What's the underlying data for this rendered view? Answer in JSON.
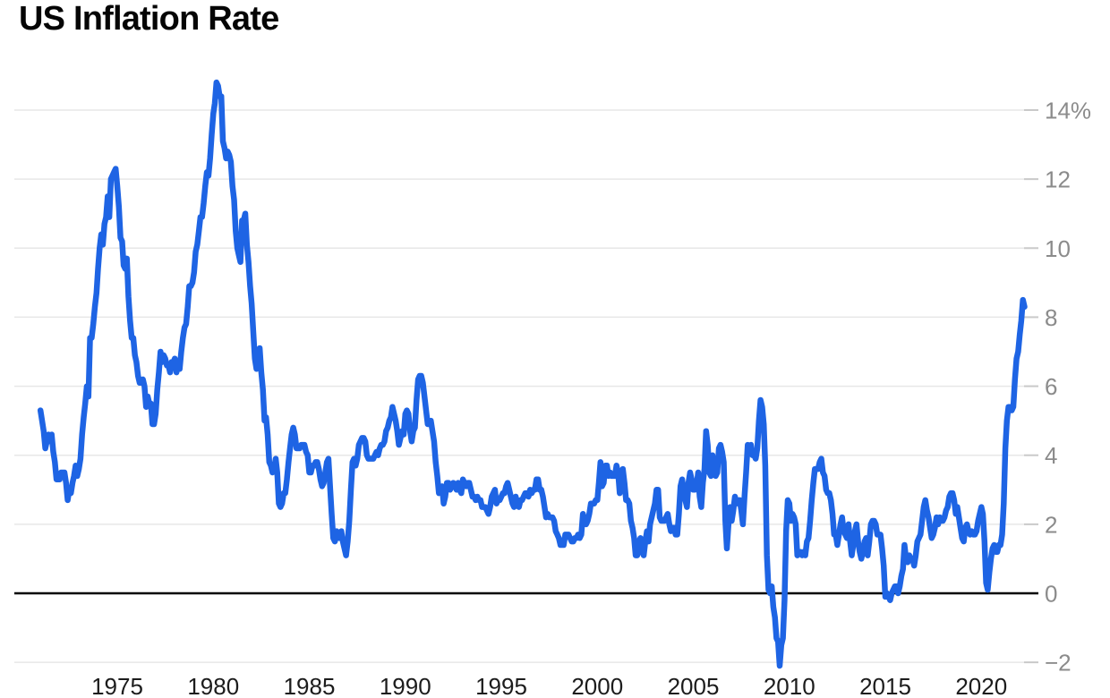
{
  "title": "US Inflation Rate",
  "appearance": {
    "line_color": "#1e64e4",
    "grid_color": "#e7e7e7",
    "tick_color": "#c9c9c9",
    "zero_line_color": "#000000",
    "y_label_color": "#8b8b8b",
    "x_label_color": "#1c1c1c",
    "title_color": "#050505",
    "background": "#ffffff"
  },
  "chart_data": {
    "type": "line",
    "title": "US Inflation Rate",
    "unit": "%",
    "legend": "none",
    "grid": "horizontal-only",
    "x_ticks": [
      1975,
      1980,
      1985,
      1990,
      1995,
      2000,
      2005,
      2010,
      2015,
      2020
    ],
    "y_ticks": {
      "values": [
        14,
        12,
        10,
        8,
        6,
        4,
        2,
        0,
        -2
      ],
      "labels": [
        "14%",
        "12",
        "10",
        "8",
        "6",
        "4",
        "2",
        "0",
        "−2"
      ]
    },
    "xlim_years": [
      1971.0,
      2022.33
    ],
    "ylim": [
      -2.6,
      15.3
    ],
    "series": [
      {
        "name": "US Inflation Rate",
        "frequency": "monthly",
        "start": "1971-01",
        "end": "2022-04",
        "values": [
          5.3,
          5.0,
          4.7,
          4.2,
          4.4,
          4.6,
          4.4,
          4.6,
          4.1,
          3.8,
          3.3,
          3.3,
          3.3,
          3.5,
          3.5,
          3.5,
          3.2,
          2.7,
          3.0,
          2.9,
          3.2,
          3.4,
          3.7,
          3.4,
          3.6,
          3.9,
          4.6,
          5.1,
          5.5,
          6.0,
          5.7,
          7.4,
          7.4,
          7.8,
          8.3,
          8.7,
          9.4,
          10.0,
          10.4,
          10.1,
          10.7,
          10.9,
          11.5,
          10.9,
          12.0,
          12.1,
          12.2,
          12.3,
          11.8,
          11.2,
          10.3,
          10.2,
          9.5,
          9.4,
          9.7,
          8.6,
          7.9,
          7.4,
          7.4,
          6.9,
          6.7,
          6.3,
          6.1,
          6.1,
          6.2,
          6.0,
          5.4,
          5.7,
          5.5,
          5.5,
          4.9,
          4.9,
          5.2,
          5.9,
          6.4,
          7.0,
          6.7,
          6.9,
          6.8,
          6.6,
          6.6,
          6.4,
          6.7,
          6.7,
          6.8,
          6.4,
          6.6,
          6.5,
          7.0,
          7.4,
          7.7,
          7.8,
          8.3,
          8.9,
          8.9,
          9.0,
          9.3,
          9.9,
          10.1,
          10.5,
          10.9,
          10.9,
          11.3,
          11.8,
          12.2,
          12.1,
          12.6,
          13.3,
          13.9,
          14.2,
          14.8,
          14.7,
          14.4,
          14.4,
          13.1,
          12.9,
          12.6,
          12.8,
          12.7,
          12.5,
          11.8,
          11.4,
          10.5,
          10.0,
          9.8,
          9.6,
          10.8,
          10.8,
          11.0,
          10.1,
          9.6,
          8.9,
          8.4,
          7.6,
          6.8,
          6.5,
          6.7,
          7.1,
          6.4,
          5.9,
          5.0,
          5.1,
          4.6,
          3.8,
          3.7,
          3.5,
          3.6,
          3.9,
          3.5,
          2.6,
          2.5,
          2.6,
          2.9,
          2.9,
          3.3,
          3.8,
          4.2,
          4.6,
          4.8,
          4.6,
          4.2,
          4.2,
          4.2,
          4.3,
          4.3,
          4.3,
          4.1,
          4.0,
          3.5,
          3.5,
          3.7,
          3.7,
          3.8,
          3.8,
          3.6,
          3.3,
          3.1,
          3.2,
          3.5,
          3.8,
          3.9,
          3.1,
          2.3,
          1.6,
          1.5,
          1.8,
          1.6,
          1.6,
          1.8,
          1.5,
          1.3,
          1.1,
          1.5,
          2.1,
          3.0,
          3.8,
          3.9,
          3.7,
          3.9,
          4.3,
          4.4,
          4.5,
          4.5,
          4.4,
          4.0,
          3.9,
          3.9,
          3.9,
          3.9,
          4.0,
          4.1,
          4.0,
          4.2,
          4.3,
          4.3,
          4.4,
          4.7,
          4.8,
          5.0,
          5.1,
          5.4,
          5.2,
          5.0,
          4.7,
          4.3,
          4.5,
          4.7,
          4.6,
          5.2,
          5.3,
          5.2,
          4.7,
          4.4,
          4.7,
          4.8,
          5.6,
          6.2,
          6.3,
          6.3,
          6.1,
          5.7,
          5.3,
          4.9,
          4.9,
          5.0,
          4.7,
          4.4,
          3.8,
          3.4,
          2.9,
          3.0,
          3.1,
          2.6,
          2.8,
          3.2,
          3.2,
          3.0,
          3.1,
          3.2,
          3.1,
          3.0,
          3.2,
          3.0,
          2.9,
          3.3,
          3.2,
          3.1,
          3.2,
          3.2,
          3.0,
          2.8,
          2.8,
          2.7,
          2.8,
          2.7,
          2.7,
          2.5,
          2.5,
          2.5,
          2.4,
          2.3,
          2.5,
          2.8,
          2.9,
          3.0,
          2.6,
          2.7,
          2.7,
          2.8,
          2.9,
          2.9,
          3.1,
          3.2,
          3.0,
          2.8,
          2.6,
          2.5,
          2.8,
          2.6,
          2.5,
          2.7,
          2.7,
          2.8,
          2.9,
          2.9,
          2.8,
          3.0,
          2.9,
          3.0,
          3.0,
          3.3,
          3.3,
          3.0,
          3.0,
          2.8,
          2.5,
          2.2,
          2.3,
          2.2,
          2.2,
          2.2,
          2.1,
          1.8,
          1.7,
          1.6,
          1.4,
          1.4,
          1.4,
          1.7,
          1.7,
          1.7,
          1.6,
          1.5,
          1.5,
          1.6,
          1.6,
          1.7,
          1.6,
          1.7,
          2.3,
          2.1,
          2.0,
          2.1,
          2.3,
          2.6,
          2.6,
          2.6,
          2.7,
          2.7,
          3.2,
          3.8,
          3.1,
          3.2,
          3.7,
          3.7,
          3.4,
          3.5,
          3.4,
          3.4,
          3.4,
          3.7,
          3.5,
          2.9,
          3.3,
          3.6,
          3.2,
          2.7,
          2.7,
          2.6,
          2.1,
          1.9,
          1.6,
          1.1,
          1.1,
          1.5,
          1.6,
          1.2,
          1.1,
          1.5,
          1.8,
          1.5,
          2.0,
          2.2,
          2.4,
          2.6,
          3.0,
          3.0,
          2.2,
          2.1,
          2.1,
          2.1,
          2.2,
          2.3,
          2.0,
          1.8,
          1.9,
          1.9,
          1.7,
          1.7,
          2.3,
          3.1,
          3.3,
          3.0,
          2.7,
          2.5,
          3.2,
          3.5,
          3.3,
          3.0,
          3.0,
          3.1,
          3.5,
          2.8,
          2.5,
          3.2,
          3.6,
          4.7,
          4.3,
          3.5,
          3.4,
          4.0,
          3.6,
          3.4,
          3.5,
          4.2,
          4.3,
          4.1,
          3.8,
          2.1,
          1.3,
          2.0,
          2.5,
          2.1,
          2.4,
          2.8,
          2.6,
          2.7,
          2.7,
          2.4,
          2.0,
          2.8,
          3.5,
          4.3,
          4.1,
          4.3,
          4.0,
          4.0,
          3.9,
          4.2,
          5.0,
          5.6,
          5.4,
          4.9,
          3.7,
          1.1,
          0.1,
          0.0,
          0.2,
          -0.4,
          -0.7,
          -1.3,
          -1.4,
          -2.1,
          -1.5,
          -1.3,
          -0.2,
          1.8,
          2.7,
          2.6,
          2.1,
          2.3,
          2.2,
          2.0,
          1.1,
          1.2,
          1.2,
          1.1,
          1.2,
          1.1,
          1.5,
          1.6,
          2.1,
          2.7,
          3.2,
          3.6,
          3.6,
          3.6,
          3.8,
          3.9,
          3.5,
          3.4,
          3.0,
          2.9,
          2.9,
          2.7,
          2.3,
          1.7,
          1.7,
          1.4,
          1.7,
          2.0,
          2.2,
          1.8,
          1.7,
          1.6,
          2.0,
          1.5,
          1.1,
          1.4,
          1.8,
          2.0,
          1.5,
          1.2,
          1.0,
          1.2,
          1.5,
          1.6,
          1.1,
          1.5,
          2.0,
          2.1,
          2.1,
          2.0,
          1.7,
          1.7,
          1.7,
          1.3,
          0.8,
          -0.1,
          0.0,
          -0.1,
          -0.2,
          0.0,
          0.1,
          0.2,
          0.2,
          0.0,
          0.2,
          0.5,
          0.7,
          1.4,
          1.0,
          0.9,
          1.1,
          1.0,
          1.0,
          0.8,
          1.1,
          1.5,
          1.6,
          1.7,
          2.1,
          2.5,
          2.7,
          2.4,
          2.2,
          1.9,
          1.6,
          1.7,
          1.9,
          2.2,
          2.0,
          2.2,
          2.1,
          2.1,
          2.2,
          2.4,
          2.5,
          2.8,
          2.9,
          2.9,
          2.7,
          2.3,
          2.5,
          2.2,
          1.9,
          1.6,
          1.5,
          1.9,
          2.0,
          1.8,
          1.7,
          1.8,
          1.7,
          1.7,
          1.8,
          2.1,
          2.3,
          2.5,
          2.3,
          1.5,
          0.3,
          0.1,
          0.6,
          1.0,
          1.3,
          1.4,
          1.2,
          1.2,
          1.4,
          1.4,
          1.7,
          2.6,
          4.2,
          5.0,
          5.4,
          5.4,
          5.3,
          5.4,
          6.2,
          6.8,
          7.0,
          7.5,
          7.9,
          8.5,
          8.3
        ]
      }
    ]
  }
}
